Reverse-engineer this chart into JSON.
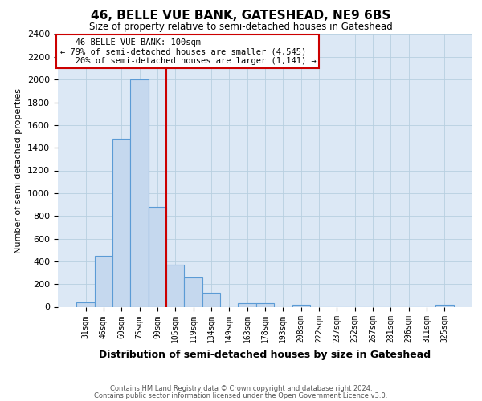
{
  "title": "46, BELLE VUE BANK, GATESHEAD, NE9 6BS",
  "subtitle": "Size of property relative to semi-detached houses in Gateshead",
  "xlabel": "Distribution of semi-detached houses by size in Gateshead",
  "ylabel": "Number of semi-detached properties",
  "categories": [
    "31sqm",
    "46sqm",
    "60sqm",
    "75sqm",
    "90sqm",
    "105sqm",
    "119sqm",
    "134sqm",
    "149sqm",
    "163sqm",
    "178sqm",
    "193sqm",
    "208sqm",
    "222sqm",
    "237sqm",
    "252sqm",
    "267sqm",
    "281sqm",
    "296sqm",
    "311sqm",
    "325sqm"
  ],
  "values": [
    40,
    450,
    1480,
    2000,
    880,
    370,
    255,
    125,
    0,
    35,
    35,
    0,
    20,
    0,
    0,
    0,
    0,
    0,
    0,
    0,
    15
  ],
  "bar_color": "#c5d8ee",
  "bar_edge_color": "#5b9bd5",
  "ylim": [
    0,
    2400
  ],
  "yticks": [
    0,
    200,
    400,
    600,
    800,
    1000,
    1200,
    1400,
    1600,
    1800,
    2000,
    2200,
    2400
  ],
  "property_label": "46 BELLE VUE BANK: 100sqm",
  "pct_smaller": 79,
  "count_smaller": 4545,
  "pct_larger": 20,
  "count_larger": 1141,
  "vline_color": "#cc0000",
  "annotation_box_color": "#ffffff",
  "annotation_box_edge": "#cc0000",
  "footer1": "Contains HM Land Registry data © Crown copyright and database right 2024.",
  "footer2": "Contains public sector information licensed under the Open Government Licence v3.0.",
  "bg_color": "#ffffff",
  "plot_bg_color": "#dce8f5",
  "grid_color": "#b8cfe0"
}
